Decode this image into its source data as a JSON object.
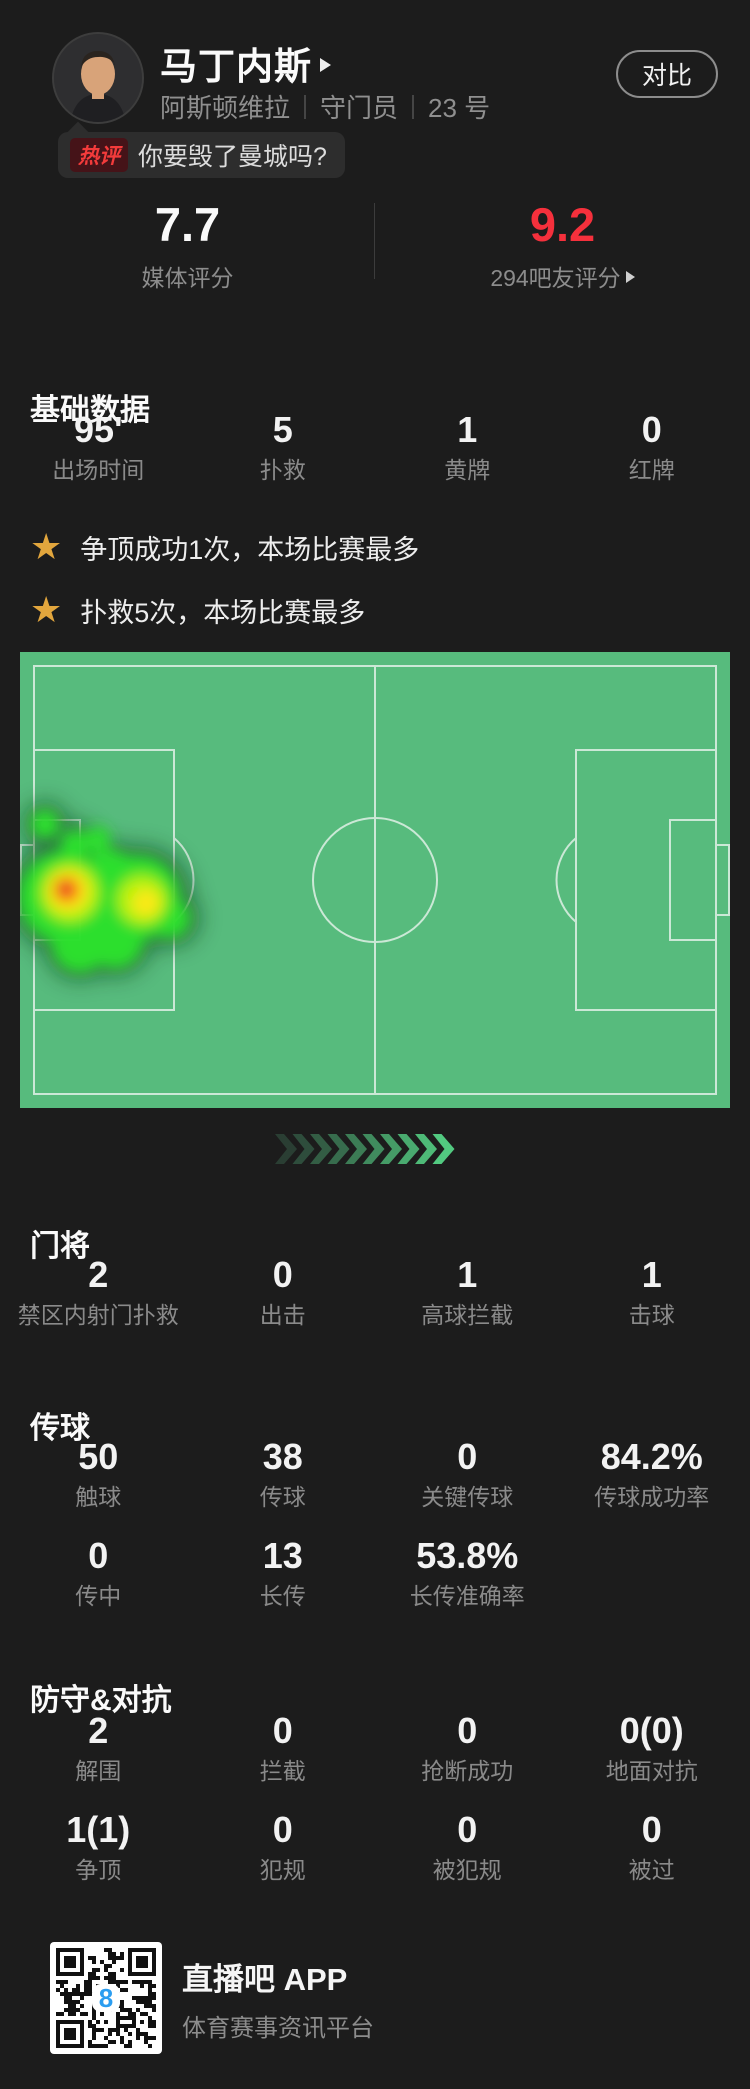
{
  "theme": {
    "bg": "#1c1c1c",
    "bubble_bg": "#2d2d2d",
    "badge_bg": "#451318",
    "badge_red": "#f33b3b",
    "score_red": "#f5303c",
    "gold": "#e2a63d",
    "pitch_green": "#57bb7d",
    "pitch_line": "#e9f4ed",
    "chevron_from": "#2a3e33",
    "chevron_to": "#52c980",
    "qr_blue": "#2b9df0"
  },
  "header": {
    "player_name": "马丁内斯",
    "team": "阿斯顿维拉",
    "position": "守门员",
    "number": "23 号",
    "compare_label": "对比",
    "hot_badge": "热评",
    "hot_comment": "你要毁了曼城吗?"
  },
  "ratings": {
    "media_score": "7.7",
    "media_label": "媒体评分",
    "fan_score": "9.2",
    "fan_label": "294吧友评分"
  },
  "sections": {
    "basic": {
      "title": "基础数据",
      "stats": [
        {
          "value": "95'",
          "label": "出场时间"
        },
        {
          "value": "5",
          "label": "扑救"
        },
        {
          "value": "1",
          "label": "黄牌"
        },
        {
          "value": "0",
          "label": "红牌"
        }
      ]
    },
    "highlights": [
      {
        "text": "争顶成功1次，本场比赛最多"
      },
      {
        "text": "扑救5次，本场比赛最多"
      }
    ],
    "goalkeeper": {
      "title": "门将",
      "stats": [
        {
          "value": "2",
          "label": "禁区内射门扑救"
        },
        {
          "value": "0",
          "label": "出击"
        },
        {
          "value": "1",
          "label": "高球拦截"
        },
        {
          "value": "1",
          "label": "击球"
        }
      ]
    },
    "passing": {
      "title": "传球",
      "stats": [
        {
          "value": "50",
          "label": "触球"
        },
        {
          "value": "38",
          "label": "传球"
        },
        {
          "value": "0",
          "label": "关键传球"
        },
        {
          "value": "84.2%",
          "label": "传球成功率"
        },
        {
          "value": "0",
          "label": "传中"
        },
        {
          "value": "13",
          "label": "长传"
        },
        {
          "value": "53.8%",
          "label": "长传准确率"
        }
      ]
    },
    "defense": {
      "title": "防守&对抗",
      "stats": [
        {
          "value": "2",
          "label": "解围"
        },
        {
          "value": "0",
          "label": "拦截"
        },
        {
          "value": "0",
          "label": "抢断成功"
        },
        {
          "value": "0(0)",
          "label": "地面对抗"
        },
        {
          "value": "1(1)",
          "label": "争顶"
        },
        {
          "value": "0",
          "label": "犯规"
        },
        {
          "value": "0",
          "label": "被犯规"
        },
        {
          "value": "0",
          "label": "被过"
        }
      ]
    }
  },
  "heatmap": {
    "description": "活动热图",
    "hot_zone": "left-penalty-area"
  },
  "icons": {
    "star": "★"
  },
  "footer": {
    "app_name": "直播吧 APP",
    "app_desc": "体育赛事资讯平台"
  }
}
